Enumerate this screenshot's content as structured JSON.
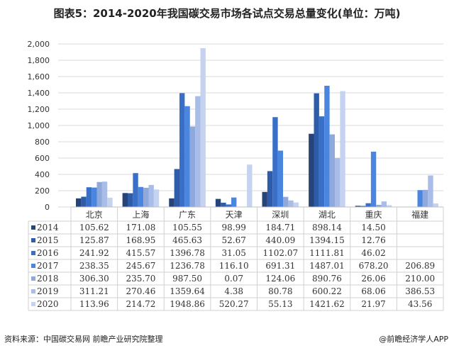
{
  "title": "图表5：2014-2020年我国碳交易市场各试点交易总量变化(单位：万吨)",
  "source": "资料来源：中国碳交易网 前瞻产业研究院整理",
  "brand": "@前瞻经济学人APP",
  "chart_data": {
    "type": "bar",
    "title": "图表5：2014-2020年我国碳交易市场各试点交易总量变化(单位：万吨)",
    "categories": [
      "北京",
      "上海",
      "广东",
      "天津",
      "深圳",
      "湖北",
      "重庆",
      "福建"
    ],
    "ylim": [
      0,
      2000
    ],
    "yticks": [
      "0",
      "200",
      "400",
      "600",
      "800",
      "1,000",
      "1,200",
      "1,400",
      "1,600",
      "1,800",
      "2,000"
    ],
    "grid": true,
    "legend": "table-left",
    "series": [
      {
        "name": "2014",
        "color": "#264478",
        "values": [
          105.62,
          171.08,
          105.55,
          98.99,
          184.71,
          898.14,
          14.5,
          null
        ],
        "labels": [
          "105.62",
          "171.08",
          "105.55",
          "98.99",
          "184.71",
          "898.14",
          "14.50",
          ""
        ]
      },
      {
        "name": "2015",
        "color": "#2f5ca8",
        "values": [
          125.87,
          168.95,
          465.63,
          52.67,
          440.09,
          1394.15,
          12.76,
          null
        ],
        "labels": [
          "125.87",
          "168.95",
          "465.63",
          "52.67",
          "440.09",
          "1394.15",
          "12.76",
          ""
        ]
      },
      {
        "name": "2016",
        "color": "#3a6fc7",
        "values": [
          241.92,
          415.57,
          1396.78,
          31.05,
          1102.07,
          1111.81,
          46.02,
          null
        ],
        "labels": [
          "241.92",
          "415.57",
          "1396.78",
          "31.05",
          "1102.07",
          "1111.81",
          "46.02",
          ""
        ]
      },
      {
        "name": "2017",
        "color": "#4a86e0",
        "values": [
          238.35,
          245.67,
          1236.78,
          116.1,
          691.31,
          1487.01,
          678.2,
          206.89
        ],
        "labels": [
          "238.35",
          "245.67",
          "1236.78",
          "116.10",
          "691.31",
          "1487.01",
          "678.20",
          "206.89"
        ]
      },
      {
        "name": "2018",
        "color": "#8fa9dc",
        "values": [
          306.3,
          235.7,
          987.5,
          0.07,
          124.06,
          890.76,
          26.06,
          210.0
        ],
        "labels": [
          "306.30",
          "235.70",
          "987.50",
          "0.07",
          "124.06",
          "890.76",
          "26.06",
          "210.00"
        ]
      },
      {
        "name": "2019",
        "color": "#a9bde8",
        "values": [
          311.21,
          270.46,
          1359.64,
          4.38,
          80.78,
          600.22,
          68.06,
          386.53
        ],
        "labels": [
          "311.21",
          "270.46",
          "1359.64",
          "4.38",
          "80.78",
          "600.22",
          "68.06",
          "386.53"
        ]
      },
      {
        "name": "2020",
        "color": "#c5d2f0",
        "values": [
          113.96,
          214.72,
          1948.86,
          520.27,
          55.13,
          1421.62,
          21.97,
          43.56
        ],
        "labels": [
          "113.96",
          "214.72",
          "1948.86",
          "520.27",
          "55.13",
          "1421.62",
          "21.97",
          "43.56"
        ]
      }
    ]
  }
}
